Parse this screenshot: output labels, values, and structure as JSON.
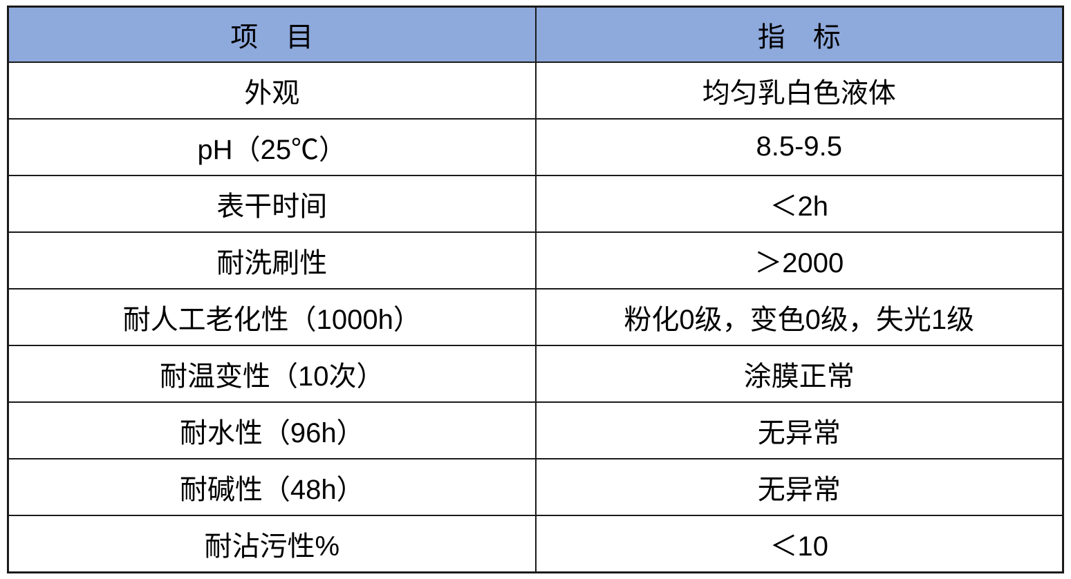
{
  "colors": {
    "page_bg": "#ffffff",
    "header_bg": "#8EA9DB",
    "border": "#1a1a1a",
    "text": "#000000"
  },
  "table": {
    "header": {
      "item": "项　目",
      "index": "指　标"
    },
    "rows": [
      {
        "item": "外观",
        "value": "均匀乳白色液体"
      },
      {
        "item": "pH（25℃）",
        "value": "8.5-9.5"
      },
      {
        "item": "表干时间",
        "value": "＜2h"
      },
      {
        "item": "耐洗刷性",
        "value": "＞2000"
      },
      {
        "item": "耐人工老化性（1000h）",
        "value": "粉化0级，变色0级，失光1级"
      },
      {
        "item": "耐温变性（10次）",
        "value": "涂膜正常"
      },
      {
        "item": "耐水性（96h）",
        "value": "无异常"
      },
      {
        "item": "耐碱性（48h）",
        "value": "无异常"
      },
      {
        "item": "耐沾污性%",
        "value": "＜10"
      }
    ]
  }
}
